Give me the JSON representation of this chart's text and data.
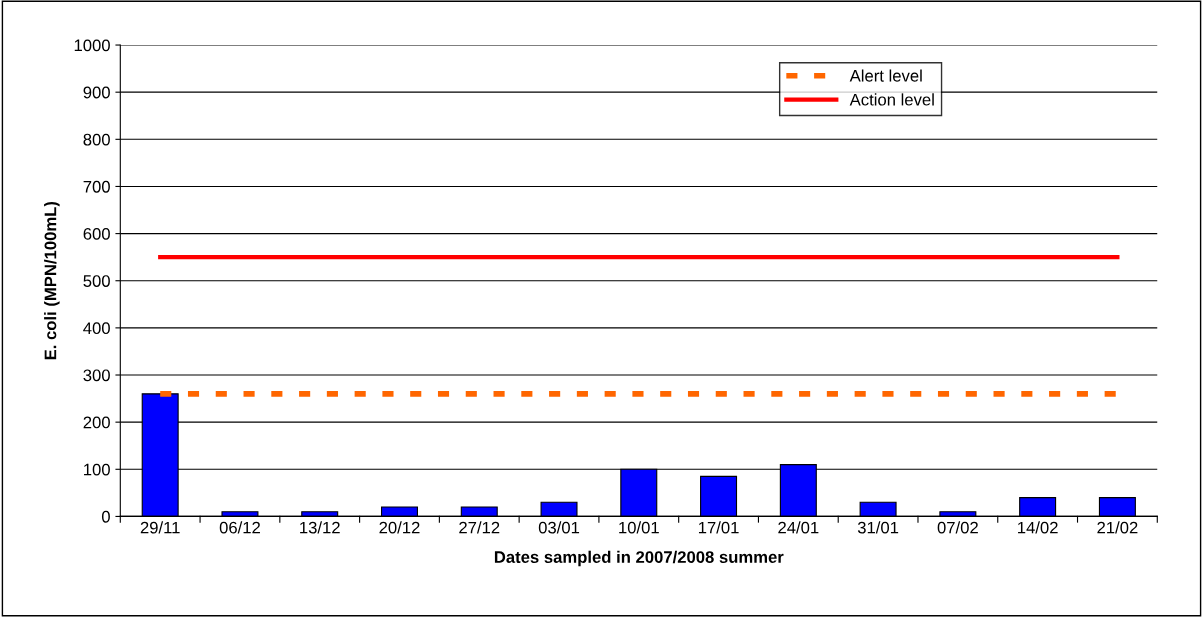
{
  "chart_data": {
    "type": "bar",
    "xlabel": "Dates sampled in 2007/2008 summer",
    "ylabel": "E. coli (MPN/100mL)",
    "categories": [
      "29/11",
      "06/12",
      "13/12",
      "20/12",
      "27/12",
      "03/01",
      "10/01",
      "17/01",
      "24/01",
      "31/01",
      "07/02",
      "14/02",
      "21/02"
    ],
    "series": [
      {
        "color": "#0000ff",
        "values": [
          260,
          10,
          10,
          20,
          20,
          30,
          100,
          85,
          110,
          30,
          10,
          40,
          40
        ]
      },
      {
        "type": "line",
        "name": "Alert level",
        "color": "#ff6600",
        "line_style": "dashed",
        "values": [
          260,
          260,
          260,
          260,
          260,
          260,
          260,
          260,
          260,
          260,
          260,
          260,
          260
        ]
      },
      {
        "type": "line",
        "name": "Action level",
        "color": "#ff0000",
        "line_style": "solid",
        "values": [
          550,
          550,
          550,
          550,
          550,
          550,
          550,
          550,
          550,
          550,
          550,
          550,
          550
        ]
      }
    ],
    "ylim": [
      0,
      1000
    ],
    "yticks": [
      0,
      100,
      200,
      300,
      400,
      500,
      600,
      700,
      800,
      900,
      1000
    ],
    "grid": "y",
    "legend": "top right"
  }
}
